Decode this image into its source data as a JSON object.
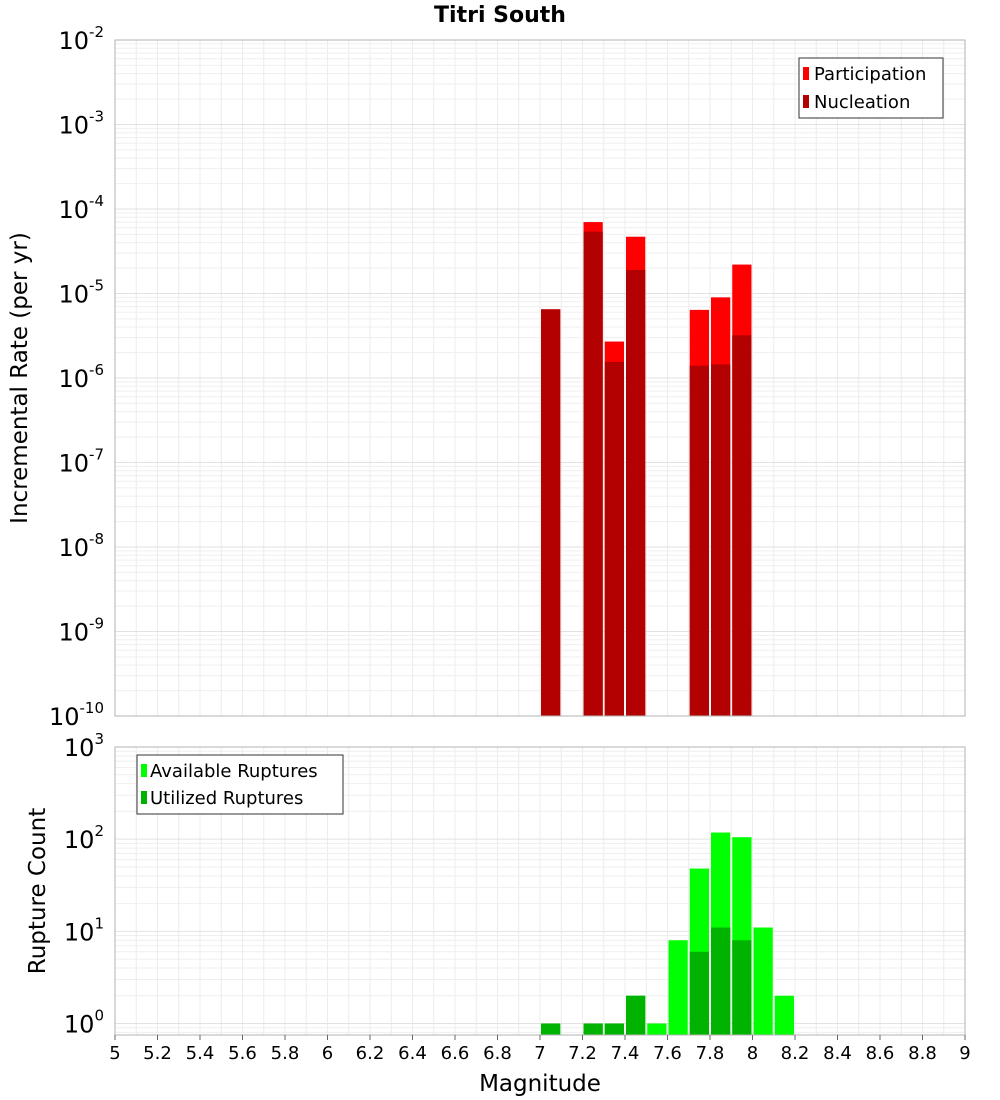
{
  "chart_data": [
    {
      "type": "bar",
      "title": "Titri South",
      "xlabel": "",
      "ylabel": "Incremental Rate (per yr)",
      "yscale": "log",
      "xlim": [
        5,
        9
      ],
      "ylim": [
        1e-10,
        0.01
      ],
      "ytick_labels": [
        {
          "base": "10",
          "exp": "-10",
          "value": 1e-10
        },
        {
          "base": "10",
          "exp": "-9",
          "value": 1e-09
        },
        {
          "base": "10",
          "exp": "-8",
          "value": 1e-08
        },
        {
          "base": "10",
          "exp": "-7",
          "value": 1e-07
        },
        {
          "base": "10",
          "exp": "-6",
          "value": 1e-06
        },
        {
          "base": "10",
          "exp": "-5",
          "value": 1e-05
        },
        {
          "base": "10",
          "exp": "-4",
          "value": 0.0001
        },
        {
          "base": "10",
          "exp": "-3",
          "value": 0.001
        },
        {
          "base": "10",
          "exp": "-2",
          "value": 0.01
        }
      ],
      "grid": true,
      "legend_position": "top-right",
      "bar_width": 0.1,
      "series": [
        {
          "name": "Participation",
          "color": "#ff0000",
          "x": [
            7.05,
            7.25,
            7.35,
            7.45,
            7.75,
            7.85,
            7.95
          ],
          "values": [
            6.5e-06,
            7e-05,
            2.7e-06,
            4.7e-05,
            6.4e-06,
            9e-06,
            2.2e-05
          ]
        },
        {
          "name": "Nucleation",
          "color": "#b30000",
          "x": [
            7.05,
            7.25,
            7.35,
            7.45,
            7.75,
            7.85,
            7.95
          ],
          "values": [
            6.5e-06,
            5.4e-05,
            1.55e-06,
            1.9e-05,
            1.4e-06,
            1.45e-06,
            3.2e-06
          ]
        }
      ]
    },
    {
      "type": "bar",
      "title": "",
      "xlabel": "Magnitude",
      "ylabel": "Rupture Count",
      "yscale": "log",
      "xlim": [
        5,
        9
      ],
      "ylim": [
        0.75,
        1000
      ],
      "xtick_labels": [
        "5",
        "5.2",
        "5.4",
        "5.6",
        "5.8",
        "6",
        "6.2",
        "6.4",
        "6.6",
        "6.8",
        "7",
        "7.2",
        "7.4",
        "7.6",
        "7.8",
        "8",
        "8.2",
        "8.4",
        "8.6",
        "8.8",
        "9"
      ],
      "ytick_labels": [
        {
          "base": "10",
          "exp": "0",
          "value": 1
        },
        {
          "base": "10",
          "exp": "1",
          "value": 10
        },
        {
          "base": "10",
          "exp": "2",
          "value": 100
        },
        {
          "base": "10",
          "exp": "3",
          "value": 1000
        }
      ],
      "grid": true,
      "legend_position": "top-left",
      "bar_width": 0.1,
      "series": [
        {
          "name": "Available Ruptures",
          "color": "#00ff00",
          "x": [
            7.05,
            7.25,
            7.35,
            7.45,
            7.55,
            7.65,
            7.75,
            7.85,
            7.95,
            8.05,
            8.15
          ],
          "values": [
            1,
            1,
            1,
            2,
            1,
            8,
            48,
            118,
            105,
            11,
            2
          ]
        },
        {
          "name": "Utilized Ruptures",
          "color": "#00b300",
          "x": [
            7.05,
            7.25,
            7.35,
            7.45,
            7.75,
            7.85,
            7.95
          ],
          "values": [
            1,
            1,
            1,
            2,
            6,
            11,
            8
          ]
        }
      ]
    }
  ]
}
